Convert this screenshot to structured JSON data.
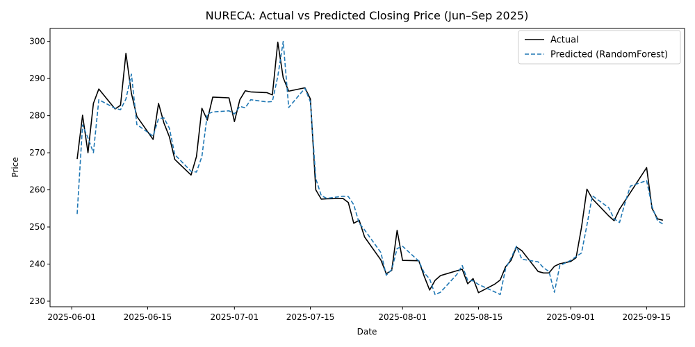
{
  "chart_data": {
    "type": "line",
    "title": "NURECA: Actual vs Predicted Closing Price (Jun–Sep 2025)",
    "xlabel": "Date",
    "ylabel": "Price",
    "xlim": [
      "2025-05-28",
      "2025-09-22"
    ],
    "ylim": [
      228.5,
      303.5
    ],
    "x_ticks": [
      "2025-06-01",
      "2025-06-15",
      "2025-07-01",
      "2025-07-15",
      "2025-08-01",
      "2025-08-15",
      "2025-09-01",
      "2025-09-15"
    ],
    "y_ticks": [
      230,
      240,
      250,
      260,
      270,
      280,
      290,
      300
    ],
    "grid": false,
    "legend": "top-right",
    "series": [
      {
        "name": "Actual",
        "color": "#000000",
        "style": "solid",
        "points": [
          [
            "2025-06-02",
            268.3
          ],
          [
            "2025-06-03",
            280.1
          ],
          [
            "2025-06-04",
            270.0
          ],
          [
            "2025-06-05",
            283.3
          ],
          [
            "2025-06-06",
            287.2
          ],
          [
            "2025-06-09",
            281.8
          ],
          [
            "2025-06-10",
            282.8
          ],
          [
            "2025-06-11",
            296.8
          ],
          [
            "2025-06-12",
            286.0
          ],
          [
            "2025-06-13",
            279.8
          ],
          [
            "2025-06-16",
            273.6
          ],
          [
            "2025-06-17",
            283.3
          ],
          [
            "2025-06-18",
            278.0
          ],
          [
            "2025-06-19",
            274.3
          ],
          [
            "2025-06-20",
            268.2
          ],
          [
            "2025-06-23",
            264.0
          ],
          [
            "2025-06-24",
            269.0
          ],
          [
            "2025-06-25",
            282.0
          ],
          [
            "2025-06-26",
            278.8
          ],
          [
            "2025-06-27",
            285.0
          ],
          [
            "2025-06-30",
            284.8
          ],
          [
            "2025-07-01",
            278.4
          ],
          [
            "2025-07-02",
            284.3
          ],
          [
            "2025-07-03",
            286.7
          ],
          [
            "2025-07-04",
            286.4
          ],
          [
            "2025-07-07",
            286.2
          ],
          [
            "2025-07-08",
            285.6
          ],
          [
            "2025-07-09",
            299.8
          ],
          [
            "2025-07-10",
            290.2
          ],
          [
            "2025-07-11",
            286.6
          ],
          [
            "2025-07-14",
            287.5
          ],
          [
            "2025-07-15",
            284.5
          ],
          [
            "2025-07-16",
            260.0
          ],
          [
            "2025-07-17",
            257.5
          ],
          [
            "2025-07-18",
            257.6
          ],
          [
            "2025-07-21",
            257.7
          ],
          [
            "2025-07-22",
            256.6
          ],
          [
            "2025-07-23",
            251.0
          ],
          [
            "2025-07-24",
            251.8
          ],
          [
            "2025-07-25",
            247.3
          ],
          [
            "2025-07-28",
            241.1
          ],
          [
            "2025-07-29",
            237.4
          ],
          [
            "2025-07-30",
            238.3
          ],
          [
            "2025-07-31",
            249.1
          ],
          [
            "2025-08-01",
            241.0
          ],
          [
            "2025-08-04",
            240.9
          ],
          [
            "2025-08-05",
            236.7
          ],
          [
            "2025-08-06",
            233.0
          ],
          [
            "2025-08-07",
            235.6
          ],
          [
            "2025-08-08",
            236.9
          ],
          [
            "2025-08-11",
            238.2
          ],
          [
            "2025-08-12",
            238.6
          ],
          [
            "2025-08-13",
            234.7
          ],
          [
            "2025-08-14",
            236.1
          ],
          [
            "2025-08-15",
            232.3
          ],
          [
            "2025-08-18",
            234.6
          ],
          [
            "2025-08-19",
            235.7
          ],
          [
            "2025-08-20",
            239.3
          ],
          [
            "2025-08-21",
            241.0
          ],
          [
            "2025-08-22",
            244.6
          ],
          [
            "2025-08-23",
            243.6
          ],
          [
            "2025-08-26",
            238.0
          ],
          [
            "2025-08-27",
            237.6
          ],
          [
            "2025-08-28",
            237.6
          ],
          [
            "2025-08-29",
            239.4
          ],
          [
            "2025-08-30",
            240.1
          ],
          [
            "2025-09-01",
            240.7
          ],
          [
            "2025-09-02",
            241.7
          ],
          [
            "2025-09-03",
            249.9
          ],
          [
            "2025-09-04",
            260.2
          ],
          [
            "2025-09-05",
            257.6
          ],
          [
            "2025-09-08",
            253.0
          ],
          [
            "2025-09-09",
            251.7
          ],
          [
            "2025-09-10",
            254.8
          ],
          [
            "2025-09-15",
            266.0
          ],
          [
            "2025-09-16",
            255.0
          ],
          [
            "2025-09-17",
            252.2
          ],
          [
            "2025-09-18",
            251.8
          ]
        ]
      },
      {
        "name": "Predicted (RandomForest)",
        "color": "#1f77b4",
        "style": "dashed",
        "points": [
          [
            "2025-06-02",
            253.5
          ],
          [
            "2025-06-03",
            277.5
          ],
          [
            "2025-06-04",
            274.0
          ],
          [
            "2025-06-05",
            270.0
          ],
          [
            "2025-06-06",
            284.3
          ],
          [
            "2025-06-09",
            282.0
          ],
          [
            "2025-06-10",
            281.6
          ],
          [
            "2025-06-11",
            284.5
          ],
          [
            "2025-06-12",
            291.2
          ],
          [
            "2025-06-13",
            277.6
          ],
          [
            "2025-06-16",
            274.5
          ],
          [
            "2025-06-17",
            279.2
          ],
          [
            "2025-06-18",
            279.4
          ],
          [
            "2025-06-19",
            276.6
          ],
          [
            "2025-06-20",
            269.5
          ],
          [
            "2025-06-23",
            265.0
          ],
          [
            "2025-06-24",
            264.8
          ],
          [
            "2025-06-25",
            269.0
          ],
          [
            "2025-06-26",
            280.4
          ],
          [
            "2025-06-27",
            281.0
          ],
          [
            "2025-06-30",
            281.3
          ],
          [
            "2025-07-01",
            280.5
          ],
          [
            "2025-07-02",
            282.5
          ],
          [
            "2025-07-03",
            282.1
          ],
          [
            "2025-07-04",
            284.3
          ],
          [
            "2025-07-07",
            283.7
          ],
          [
            "2025-07-08",
            283.8
          ],
          [
            "2025-07-09",
            290.6
          ],
          [
            "2025-07-10",
            300.0
          ],
          [
            "2025-07-11",
            282.2
          ],
          [
            "2025-07-14",
            287.4
          ],
          [
            "2025-07-15",
            283.7
          ],
          [
            "2025-07-16",
            263.0
          ],
          [
            "2025-07-17",
            258.5
          ],
          [
            "2025-07-18",
            257.7
          ],
          [
            "2025-07-21",
            258.3
          ],
          [
            "2025-07-22",
            258.2
          ],
          [
            "2025-07-23",
            256.0
          ],
          [
            "2025-07-24",
            251.0
          ],
          [
            "2025-07-25",
            249.2
          ],
          [
            "2025-07-28",
            243.1
          ],
          [
            "2025-07-29",
            237.0
          ],
          [
            "2025-07-30",
            238.5
          ],
          [
            "2025-07-31",
            244.2
          ],
          [
            "2025-08-01",
            244.8
          ],
          [
            "2025-08-04",
            240.8
          ],
          [
            "2025-08-05",
            237.6
          ],
          [
            "2025-08-06",
            236.0
          ],
          [
            "2025-08-07",
            231.8
          ],
          [
            "2025-08-08",
            232.4
          ],
          [
            "2025-08-11",
            237.2
          ],
          [
            "2025-08-12",
            239.6
          ],
          [
            "2025-08-13",
            235.6
          ],
          [
            "2025-08-14",
            235.5
          ],
          [
            "2025-08-15",
            234.5
          ],
          [
            "2025-08-18",
            232.5
          ],
          [
            "2025-08-19",
            231.8
          ],
          [
            "2025-08-20",
            238.8
          ],
          [
            "2025-08-21",
            241.6
          ],
          [
            "2025-08-22",
            244.8
          ],
          [
            "2025-08-23",
            241.3
          ],
          [
            "2025-08-26",
            240.6
          ],
          [
            "2025-08-27",
            239.0
          ],
          [
            "2025-08-28",
            238.0
          ],
          [
            "2025-08-29",
            232.4
          ],
          [
            "2025-08-30",
            239.6
          ],
          [
            "2025-09-01",
            241.0
          ],
          [
            "2025-09-02",
            242.0
          ],
          [
            "2025-09-03",
            243.0
          ],
          [
            "2025-09-04",
            250.5
          ],
          [
            "2025-09-05",
            258.4
          ],
          [
            "2025-09-08",
            255.2
          ],
          [
            "2025-09-09",
            252.2
          ],
          [
            "2025-09-10",
            251.2
          ],
          [
            "2025-09-11",
            256.4
          ],
          [
            "2025-09-12",
            261.0
          ],
          [
            "2025-09-15",
            262.5
          ],
          [
            "2025-09-16",
            255.5
          ],
          [
            "2025-09-17",
            251.7
          ],
          [
            "2025-09-18",
            250.8
          ]
        ]
      }
    ]
  }
}
